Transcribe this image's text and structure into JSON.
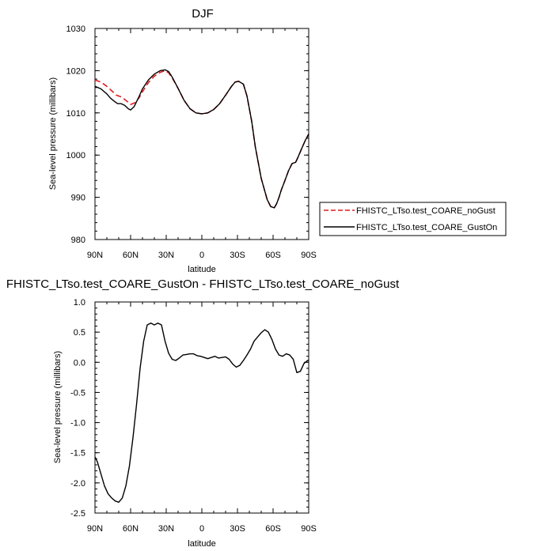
{
  "chart_data": [
    {
      "type": "line",
      "title": "DJF",
      "xlabel": "latitude",
      "ylabel": "Sea-level pressure (millibars)",
      "xlim": [
        90,
        -90
      ],
      "ylim": [
        980,
        1030
      ],
      "xticks": [
        90,
        60,
        30,
        0,
        -30,
        -60,
        -90
      ],
      "xtick_labels": [
        "90N",
        "60N",
        "30N",
        "0",
        "30S",
        "60S",
        "90S"
      ],
      "yticks": [
        980,
        990,
        1000,
        1010,
        1020,
        1030
      ],
      "ytick_labels": [
        "980",
        "990",
        "1000",
        "1010",
        "1020",
        "1030"
      ],
      "legend_position": "right, outside plot",
      "series": [
        {
          "name": "FHISTC_LTso.test_COARE_noGust",
          "color": "#e41a1c",
          "dash": "dashed",
          "x": [
            90,
            85,
            80,
            75,
            72,
            68,
            65,
            62,
            60,
            57,
            53,
            50,
            45,
            40,
            35,
            31,
            28,
            25,
            20,
            15,
            10,
            5,
            0,
            -5,
            -10,
            -15,
            -20,
            -25,
            -28,
            -31,
            -35,
            -38,
            -42,
            -45,
            -50,
            -55,
            -58,
            -61,
            -63,
            -65,
            -67,
            -70,
            -73,
            -76,
            -79,
            -81,
            -84,
            -87,
            -90
          ],
          "y": [
            1017.8,
            1017.3,
            1016.3,
            1015.0,
            1014.2,
            1013.8,
            1013.2,
            1012.5,
            1012.0,
            1012.3,
            1013.5,
            1015.0,
            1017.2,
            1018.7,
            1019.6,
            1020.0,
            1019.5,
            1018.3,
            1015.8,
            1013.0,
            1011.0,
            1010.0,
            1009.8,
            1010.0,
            1010.8,
            1012.2,
            1014.2,
            1016.3,
            1017.3,
            1017.5,
            1016.8,
            1014.0,
            1008.0,
            1002.0,
            994.5,
            989.5,
            987.8,
            987.5,
            988.5,
            990.0,
            991.8,
            994.0,
            996.3,
            998.0,
            998.3,
            999.5,
            1001.5,
            1003.4,
            1005.0
          ]
        },
        {
          "name": "FHISTC_LTso.test_COARE_GustOn",
          "color": "#000000",
          "dash": "solid",
          "x": [
            90,
            85,
            80,
            77,
            74,
            71,
            68,
            65,
            62,
            60,
            57,
            53,
            50,
            45,
            40,
            35,
            31,
            28,
            25,
            20,
            15,
            10,
            5,
            0,
            -5,
            -10,
            -15,
            -20,
            -25,
            -28,
            -31,
            -35,
            -38,
            -42,
            -45,
            -50,
            -55,
            -58,
            -61,
            -63,
            -65,
            -67,
            -70,
            -73,
            -76,
            -79,
            -81,
            -84,
            -87,
            -90
          ],
          "y": [
            1016.3,
            1015.7,
            1014.5,
            1013.5,
            1012.8,
            1012.2,
            1012.2,
            1011.8,
            1011.0,
            1010.7,
            1011.5,
            1013.8,
            1015.7,
            1017.8,
            1019.2,
            1020.0,
            1020.2,
            1019.8,
            1018.5,
            1015.8,
            1013.0,
            1011.0,
            1010.0,
            1009.8,
            1010.0,
            1010.8,
            1012.2,
            1014.2,
            1016.3,
            1017.3,
            1017.5,
            1016.8,
            1014.0,
            1008.0,
            1002.0,
            994.5,
            989.5,
            987.8,
            987.5,
            988.5,
            990.0,
            991.8,
            994.0,
            996.3,
            998.0,
            998.3,
            999.5,
            1001.5,
            1003.4,
            1005.0
          ]
        }
      ]
    },
    {
      "type": "line",
      "title": "FHISTC_LTso.test_COARE_GustOn - FHISTC_LTso.test_COARE_noGust",
      "xlabel": "latitude",
      "ylabel": "Sea-level pressure (millibars)",
      "xlim": [
        90,
        -90
      ],
      "ylim": [
        -2.5,
        1.0
      ],
      "xticks": [
        90,
        60,
        30,
        0,
        -30,
        -60,
        -90
      ],
      "xtick_labels": [
        "90N",
        "60N",
        "30N",
        "0",
        "30S",
        "60S",
        "90S"
      ],
      "yticks": [
        -2.5,
        -2.0,
        -1.5,
        -1.0,
        -0.5,
        0.0,
        0.5,
        1.0
      ],
      "ytick_labels": [
        "-2.5",
        "-2.0",
        "-1.5",
        "-1.0",
        "-0.5",
        "0.0",
        "0.5",
        "1.0"
      ],
      "series": [
        {
          "color": "#000000",
          "dash": "solid",
          "x": [
            90,
            88,
            85,
            82,
            79,
            76,
            73,
            70,
            67,
            64,
            61,
            58,
            55,
            52,
            49,
            46,
            43,
            40,
            37,
            34,
            31,
            28,
            25,
            22,
            19,
            16,
            13,
            10,
            7,
            4,
            1,
            -2,
            -5,
            -8,
            -11,
            -14,
            -17,
            -20,
            -23,
            -26,
            -29,
            -32,
            -35,
            -38,
            -41,
            -44,
            -47,
            -50,
            -53,
            -56,
            -59,
            -62,
            -65,
            -68,
            -71,
            -74,
            -77,
            -80,
            -83,
            -86,
            -89,
            -90
          ],
          "y": [
            -1.57,
            -1.65,
            -1.85,
            -2.05,
            -2.18,
            -2.25,
            -2.3,
            -2.32,
            -2.25,
            -2.05,
            -1.72,
            -1.25,
            -0.7,
            -0.1,
            0.35,
            0.62,
            0.65,
            0.62,
            0.65,
            0.62,
            0.35,
            0.15,
            0.05,
            0.03,
            0.07,
            0.12,
            0.13,
            0.14,
            0.14,
            0.11,
            0.1,
            0.08,
            0.06,
            0.08,
            0.1,
            0.07,
            0.08,
            0.09,
            0.05,
            -0.03,
            -0.08,
            -0.05,
            0.03,
            0.12,
            0.22,
            0.35,
            0.42,
            0.49,
            0.54,
            0.5,
            0.38,
            0.22,
            0.12,
            0.1,
            0.14,
            0.12,
            0.05,
            -0.17,
            -0.15,
            -0.02,
            0.03,
            0.03
          ]
        }
      ]
    }
  ]
}
